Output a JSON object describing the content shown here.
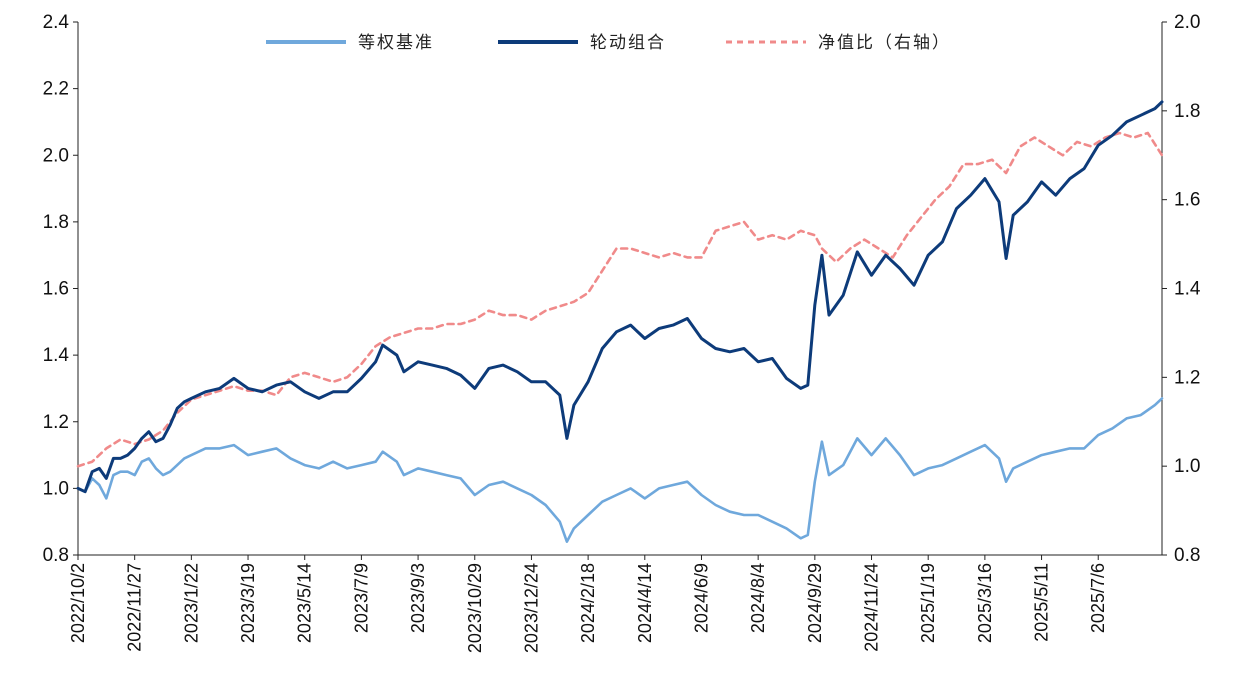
{
  "chart_data": {
    "type": "line",
    "title": "",
    "xlabel": "",
    "ylabel": "",
    "x_ticks": [
      "2022/10/2",
      "2022/11/27",
      "2023/1/22",
      "2023/3/19",
      "2023/5/14",
      "2023/7/9",
      "2023/9/3",
      "2023/10/29",
      "2023/12/24",
      "2024/2/18",
      "2024/4/14",
      "2024/6/9",
      "2024/8/4",
      "2024/9/29",
      "2024/11/24",
      "2025/1/19",
      "2025/3/16",
      "2025/5/11",
      "2025/7/6"
    ],
    "x_range": [
      "2022/10/2",
      "2025/9/7"
    ],
    "ylim_left": [
      0.8,
      2.4
    ],
    "yticks_left": [
      "0.8",
      "1.0",
      "1.2",
      "1.4",
      "1.6",
      "1.8",
      "2.0",
      "2.2",
      "2.4"
    ],
    "ylim_right": [
      0.8,
      2.0
    ],
    "yticks_right": [
      "0.8",
      "1.0",
      "1.2",
      "1.4",
      "1.6",
      "1.8",
      "2.0"
    ],
    "grid": false,
    "legend_position": "top-center",
    "series": [
      {
        "name": "等权基准",
        "axis": "left",
        "color": "#6FA8DC",
        "style": "solid",
        "points": [
          [
            "2022/10/2",
            1.0
          ],
          [
            "2022/10/9",
            0.99
          ],
          [
            "2022/10/16",
            1.03
          ],
          [
            "2022/10/23",
            1.01
          ],
          [
            "2022/10/30",
            0.97
          ],
          [
            "2022/11/6",
            1.04
          ],
          [
            "2022/11/13",
            1.05
          ],
          [
            "2022/11/20",
            1.05
          ],
          [
            "2022/11/27",
            1.04
          ],
          [
            "2022/12/4",
            1.08
          ],
          [
            "2022/12/11",
            1.09
          ],
          [
            "2022/12/18",
            1.06
          ],
          [
            "2022/12/25",
            1.04
          ],
          [
            "2023/1/1",
            1.05
          ],
          [
            "2023/1/8",
            1.07
          ],
          [
            "2023/1/15",
            1.09
          ],
          [
            "2023/1/22",
            1.1
          ],
          [
            "2023/2/5",
            1.12
          ],
          [
            "2023/2/19",
            1.12
          ],
          [
            "2023/3/5",
            1.13
          ],
          [
            "2023/3/19",
            1.1
          ],
          [
            "2023/4/2",
            1.11
          ],
          [
            "2023/4/16",
            1.12
          ],
          [
            "2023/4/30",
            1.09
          ],
          [
            "2023/5/14",
            1.07
          ],
          [
            "2023/5/28",
            1.06
          ],
          [
            "2023/6/11",
            1.08
          ],
          [
            "2023/6/25",
            1.06
          ],
          [
            "2023/7/9",
            1.07
          ],
          [
            "2023/7/23",
            1.08
          ],
          [
            "2023/7/30",
            1.11
          ],
          [
            "2023/8/13",
            1.08
          ],
          [
            "2023/8/20",
            1.04
          ],
          [
            "2023/9/3",
            1.06
          ],
          [
            "2023/9/17",
            1.05
          ],
          [
            "2023/10/1",
            1.04
          ],
          [
            "2023/10/15",
            1.03
          ],
          [
            "2023/10/29",
            0.98
          ],
          [
            "2023/11/12",
            1.01
          ],
          [
            "2023/11/26",
            1.02
          ],
          [
            "2023/12/10",
            1.0
          ],
          [
            "2023/12/24",
            0.98
          ],
          [
            "2024/1/7",
            0.95
          ],
          [
            "2024/1/21",
            0.9
          ],
          [
            "2024/1/28",
            0.84
          ],
          [
            "2024/2/4",
            0.88
          ],
          [
            "2024/2/18",
            0.92
          ],
          [
            "2024/3/3",
            0.96
          ],
          [
            "2024/3/17",
            0.98
          ],
          [
            "2024/3/31",
            1.0
          ],
          [
            "2024/4/14",
            0.97
          ],
          [
            "2024/4/28",
            1.0
          ],
          [
            "2024/5/12",
            1.01
          ],
          [
            "2024/5/26",
            1.02
          ],
          [
            "2024/6/9",
            0.98
          ],
          [
            "2024/6/23",
            0.95
          ],
          [
            "2024/7/7",
            0.93
          ],
          [
            "2024/7/21",
            0.92
          ],
          [
            "2024/8/4",
            0.92
          ],
          [
            "2024/8/18",
            0.9
          ],
          [
            "2024/9/1",
            0.88
          ],
          [
            "2024/9/15",
            0.85
          ],
          [
            "2024/9/22",
            0.86
          ],
          [
            "2024/9/29",
            1.02
          ],
          [
            "2024/10/6",
            1.14
          ],
          [
            "2024/10/13",
            1.04
          ],
          [
            "2024/10/27",
            1.07
          ],
          [
            "2024/11/10",
            1.15
          ],
          [
            "2024/11/24",
            1.1
          ],
          [
            "2024/12/8",
            1.15
          ],
          [
            "2024/12/22",
            1.1
          ],
          [
            "2025/1/5",
            1.04
          ],
          [
            "2025/1/19",
            1.06
          ],
          [
            "2025/2/2",
            1.07
          ],
          [
            "2025/2/16",
            1.09
          ],
          [
            "2025/3/2",
            1.11
          ],
          [
            "2025/3/16",
            1.13
          ],
          [
            "2025/3/30",
            1.09
          ],
          [
            "2025/4/6",
            1.02
          ],
          [
            "2025/4/13",
            1.06
          ],
          [
            "2025/4/27",
            1.08
          ],
          [
            "2025/5/11",
            1.1
          ],
          [
            "2025/5/25",
            1.11
          ],
          [
            "2025/6/8",
            1.12
          ],
          [
            "2025/6/22",
            1.12
          ],
          [
            "2025/7/6",
            1.16
          ],
          [
            "2025/7/20",
            1.18
          ],
          [
            "2025/8/3",
            1.21
          ],
          [
            "2025/8/17",
            1.22
          ],
          [
            "2025/8/31",
            1.25
          ],
          [
            "2025/9/7",
            1.27
          ]
        ]
      },
      {
        "name": "轮动组合",
        "axis": "left",
        "color": "#0D3B7A",
        "style": "solid",
        "points": [
          [
            "2022/10/2",
            1.0
          ],
          [
            "2022/10/9",
            0.99
          ],
          [
            "2022/10/16",
            1.05
          ],
          [
            "2022/10/23",
            1.06
          ],
          [
            "2022/10/30",
            1.03
          ],
          [
            "2022/11/6",
            1.09
          ],
          [
            "2022/11/13",
            1.09
          ],
          [
            "2022/11/20",
            1.1
          ],
          [
            "2022/11/27",
            1.12
          ],
          [
            "2022/12/4",
            1.15
          ],
          [
            "2022/12/11",
            1.17
          ],
          [
            "2022/12/18",
            1.14
          ],
          [
            "2022/12/25",
            1.15
          ],
          [
            "2023/1/1",
            1.19
          ],
          [
            "2023/1/8",
            1.24
          ],
          [
            "2023/1/15",
            1.26
          ],
          [
            "2023/1/22",
            1.27
          ],
          [
            "2023/2/5",
            1.29
          ],
          [
            "2023/2/19",
            1.3
          ],
          [
            "2023/3/5",
            1.33
          ],
          [
            "2023/3/19",
            1.3
          ],
          [
            "2023/4/2",
            1.29
          ],
          [
            "2023/4/16",
            1.31
          ],
          [
            "2023/4/30",
            1.32
          ],
          [
            "2023/5/14",
            1.29
          ],
          [
            "2023/5/28",
            1.27
          ],
          [
            "2023/6/11",
            1.29
          ],
          [
            "2023/6/25",
            1.29
          ],
          [
            "2023/7/9",
            1.33
          ],
          [
            "2023/7/23",
            1.38
          ],
          [
            "2023/7/30",
            1.43
          ],
          [
            "2023/8/13",
            1.4
          ],
          [
            "2023/8/20",
            1.35
          ],
          [
            "2023/9/3",
            1.38
          ],
          [
            "2023/9/17",
            1.37
          ],
          [
            "2023/10/1",
            1.36
          ],
          [
            "2023/10/15",
            1.34
          ],
          [
            "2023/10/29",
            1.3
          ],
          [
            "2023/11/12",
            1.36
          ],
          [
            "2023/11/26",
            1.37
          ],
          [
            "2023/12/10",
            1.35
          ],
          [
            "2023/12/24",
            1.32
          ],
          [
            "2024/1/7",
            1.32
          ],
          [
            "2024/1/21",
            1.28
          ],
          [
            "2024/1/28",
            1.15
          ],
          [
            "2024/2/4",
            1.25
          ],
          [
            "2024/2/18",
            1.32
          ],
          [
            "2024/3/3",
            1.42
          ],
          [
            "2024/3/17",
            1.47
          ],
          [
            "2024/3/31",
            1.49
          ],
          [
            "2024/4/14",
            1.45
          ],
          [
            "2024/4/28",
            1.48
          ],
          [
            "2024/5/12",
            1.49
          ],
          [
            "2024/5/26",
            1.51
          ],
          [
            "2024/6/9",
            1.45
          ],
          [
            "2024/6/23",
            1.42
          ],
          [
            "2024/7/7",
            1.41
          ],
          [
            "2024/7/21",
            1.42
          ],
          [
            "2024/8/4",
            1.38
          ],
          [
            "2024/8/18",
            1.39
          ],
          [
            "2024/9/1",
            1.33
          ],
          [
            "2024/9/15",
            1.3
          ],
          [
            "2024/9/22",
            1.31
          ],
          [
            "2024/9/29",
            1.55
          ],
          [
            "2024/10/6",
            1.7
          ],
          [
            "2024/10/13",
            1.52
          ],
          [
            "2024/10/27",
            1.58
          ],
          [
            "2024/11/10",
            1.71
          ],
          [
            "2024/11/24",
            1.64
          ],
          [
            "2024/12/8",
            1.7
          ],
          [
            "2024/12/22",
            1.66
          ],
          [
            "2025/1/5",
            1.61
          ],
          [
            "2025/1/19",
            1.7
          ],
          [
            "2025/2/2",
            1.74
          ],
          [
            "2025/2/16",
            1.84
          ],
          [
            "2025/3/2",
            1.88
          ],
          [
            "2025/3/16",
            1.93
          ],
          [
            "2025/3/30",
            1.86
          ],
          [
            "2025/4/6",
            1.69
          ],
          [
            "2025/4/13",
            1.82
          ],
          [
            "2025/4/27",
            1.86
          ],
          [
            "2025/5/11",
            1.92
          ],
          [
            "2025/5/25",
            1.88
          ],
          [
            "2025/6/8",
            1.93
          ],
          [
            "2025/6/22",
            1.96
          ],
          [
            "2025/7/6",
            2.03
          ],
          [
            "2025/7/20",
            2.06
          ],
          [
            "2025/8/3",
            2.1
          ],
          [
            "2025/8/17",
            2.12
          ],
          [
            "2025/8/31",
            2.14
          ],
          [
            "2025/9/7",
            2.16
          ]
        ]
      },
      {
        "name": "净值比（右轴）",
        "axis": "right",
        "color": "#F08A8A",
        "style": "dashed",
        "points": [
          [
            "2022/10/2",
            1.0
          ],
          [
            "2022/10/16",
            1.01
          ],
          [
            "2022/10/30",
            1.04
          ],
          [
            "2022/11/13",
            1.06
          ],
          [
            "2022/11/27",
            1.05
          ],
          [
            "2022/12/11",
            1.06
          ],
          [
            "2022/12/25",
            1.08
          ],
          [
            "2023/1/8",
            1.12
          ],
          [
            "2023/1/22",
            1.15
          ],
          [
            "2023/2/5",
            1.16
          ],
          [
            "2023/2/19",
            1.17
          ],
          [
            "2023/3/5",
            1.18
          ],
          [
            "2023/3/19",
            1.17
          ],
          [
            "2023/4/2",
            1.17
          ],
          [
            "2023/4/16",
            1.16
          ],
          [
            "2023/4/30",
            1.2
          ],
          [
            "2023/5/14",
            1.21
          ],
          [
            "2023/5/28",
            1.2
          ],
          [
            "2023/6/11",
            1.19
          ],
          [
            "2023/6/25",
            1.2
          ],
          [
            "2023/7/9",
            1.23
          ],
          [
            "2023/7/23",
            1.27
          ],
          [
            "2023/8/6",
            1.29
          ],
          [
            "2023/8/20",
            1.3
          ],
          [
            "2023/9/3",
            1.31
          ],
          [
            "2023/9/17",
            1.31
          ],
          [
            "2023/10/1",
            1.32
          ],
          [
            "2023/10/15",
            1.32
          ],
          [
            "2023/10/29",
            1.33
          ],
          [
            "2023/11/12",
            1.35
          ],
          [
            "2023/11/26",
            1.34
          ],
          [
            "2023/12/10",
            1.34
          ],
          [
            "2023/12/24",
            1.33
          ],
          [
            "2024/1/7",
            1.35
          ],
          [
            "2024/1/21",
            1.36
          ],
          [
            "2024/2/4",
            1.37
          ],
          [
            "2024/2/18",
            1.39
          ],
          [
            "2024/3/3",
            1.44
          ],
          [
            "2024/3/17",
            1.49
          ],
          [
            "2024/3/31",
            1.49
          ],
          [
            "2024/4/14",
            1.48
          ],
          [
            "2024/4/28",
            1.47
          ],
          [
            "2024/5/12",
            1.48
          ],
          [
            "2024/5/26",
            1.47
          ],
          [
            "2024/6/9",
            1.47
          ],
          [
            "2024/6/23",
            1.53
          ],
          [
            "2024/7/7",
            1.54
          ],
          [
            "2024/7/21",
            1.55
          ],
          [
            "2024/8/4",
            1.51
          ],
          [
            "2024/8/18",
            1.52
          ],
          [
            "2024/9/1",
            1.51
          ],
          [
            "2024/9/15",
            1.53
          ],
          [
            "2024/9/29",
            1.52
          ],
          [
            "2024/10/6",
            1.49
          ],
          [
            "2024/10/20",
            1.46
          ],
          [
            "2024/11/3",
            1.49
          ],
          [
            "2024/11/17",
            1.51
          ],
          [
            "2024/12/1",
            1.49
          ],
          [
            "2024/12/15",
            1.47
          ],
          [
            "2024/12/29",
            1.52
          ],
          [
            "2025/1/12",
            1.56
          ],
          [
            "2025/1/26",
            1.6
          ],
          [
            "2025/2/9",
            1.63
          ],
          [
            "2025/2/23",
            1.68
          ],
          [
            "2025/3/9",
            1.68
          ],
          [
            "2025/3/23",
            1.69
          ],
          [
            "2025/4/6",
            1.66
          ],
          [
            "2025/4/20",
            1.72
          ],
          [
            "2025/5/4",
            1.74
          ],
          [
            "2025/5/18",
            1.72
          ],
          [
            "2025/6/1",
            1.7
          ],
          [
            "2025/6/15",
            1.73
          ],
          [
            "2025/6/29",
            1.72
          ],
          [
            "2025/7/13",
            1.74
          ],
          [
            "2025/7/27",
            1.75
          ],
          [
            "2025/8/10",
            1.74
          ],
          [
            "2025/8/24",
            1.75
          ],
          [
            "2025/9/7",
            1.7
          ]
        ]
      }
    ]
  }
}
